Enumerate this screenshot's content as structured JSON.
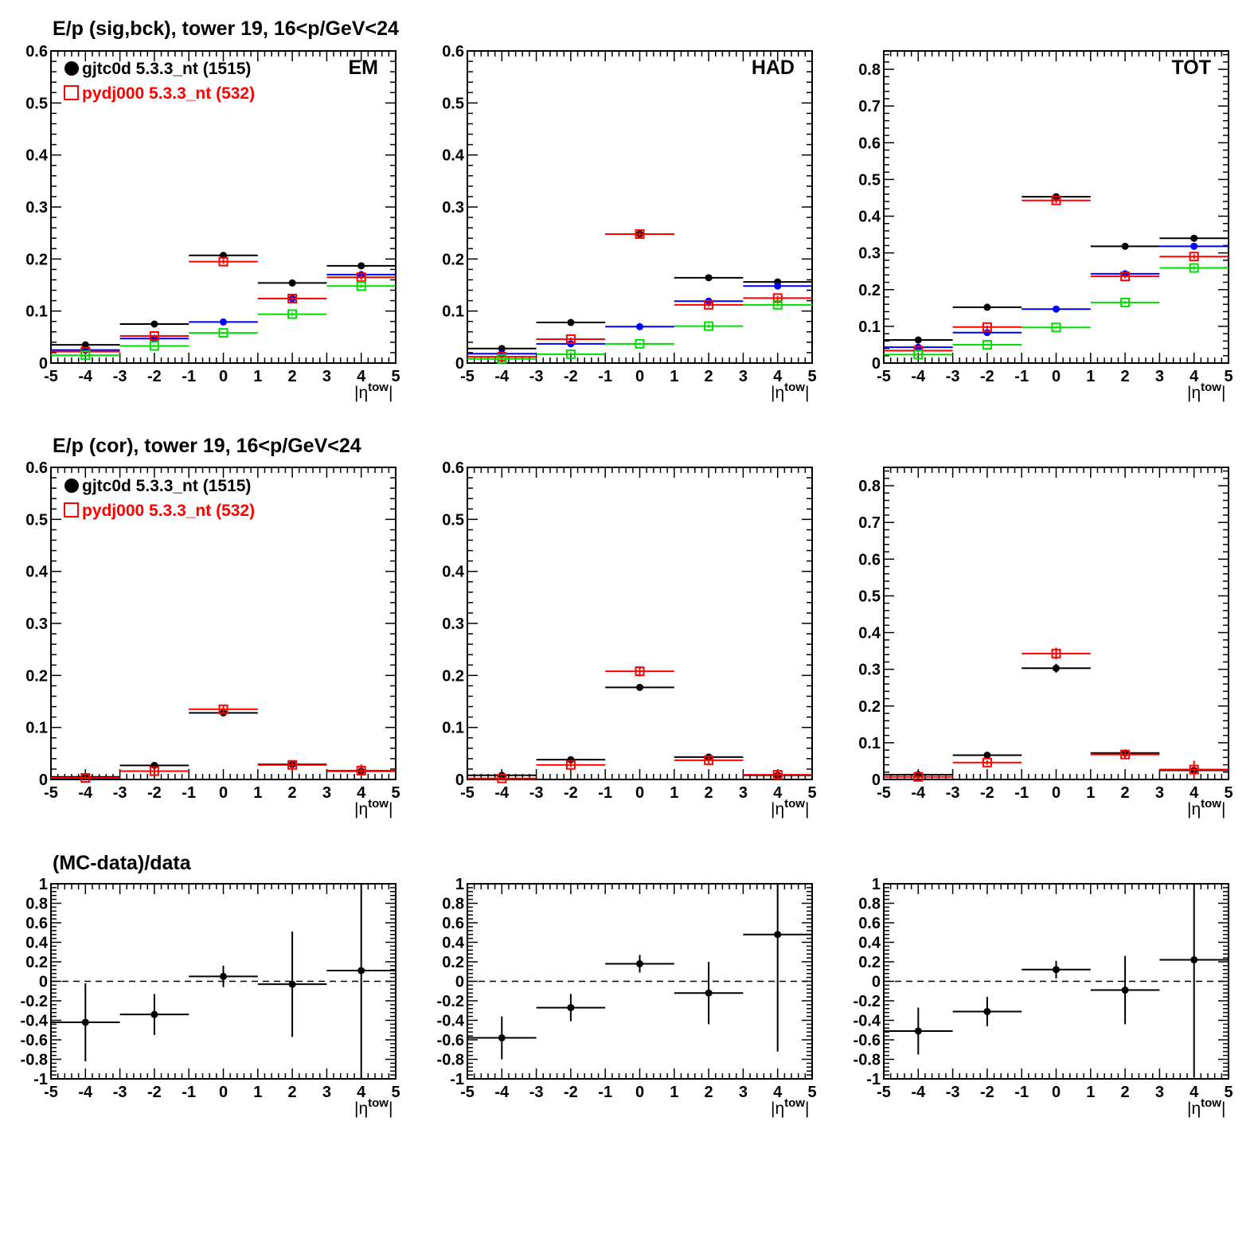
{
  "rows": [
    {
      "title": "E/p (sig,bck), tower 19, 16<p/GeV<24"
    },
    {
      "title": "E/p (cor), tower 19, 16<p/GeV<24"
    },
    {
      "title": "(MC-data)/data"
    }
  ],
  "legend": {
    "entries": [
      {
        "label": "gjtc0d 5.3.3_nt (1515)",
        "color": "#000000",
        "marker": "filled-circle"
      },
      {
        "label": "pydj000 5.3.3_nt (532)",
        "color": "#ff0000",
        "marker": "open-square"
      }
    ]
  },
  "axis_title": {
    "base": "|η",
    "sup": "tow",
    "close": "|"
  },
  "colors": {
    "data": "#000000",
    "mc": "#ff0000",
    "blue": "#0000ff",
    "green": "#00dd00"
  },
  "chart_data": [
    {
      "type": "scatter",
      "panel": "row1-EM",
      "label": "EM",
      "xlim": [
        -5,
        5
      ],
      "ylim": [
        0,
        0.6
      ],
      "yticks": [
        0,
        0.1,
        0.2,
        0.3,
        0.4,
        0.5,
        0.6
      ],
      "ytick_labels": [
        "0",
        "0.1",
        "0.2",
        "0.3",
        "0.4",
        "0.5",
        "0.6"
      ],
      "xticks": [
        -5,
        -4,
        -3,
        -2,
        -1,
        0,
        1,
        2,
        3,
        4,
        5
      ],
      "xlabel": "|η^tow|",
      "legend": "top-left",
      "series": [
        {
          "name": "black",
          "color": "#000000",
          "marker": "dot",
          "x": [
            -4,
            -2,
            0,
            2,
            4
          ],
          "xerr": 1,
          "y": [
            0.035,
            0.075,
            0.207,
            0.154,
            0.187
          ],
          "yerr": [
            0.002,
            0.002,
            0.003,
            0.003,
            0.003
          ]
        },
        {
          "name": "blue",
          "color": "#0000ff",
          "marker": "dot",
          "x": [
            -4,
            -2,
            0,
            2,
            4
          ],
          "xerr": 1,
          "y": [
            0.025,
            0.047,
            0.079,
            0.124,
            0.17
          ],
          "yerr": [
            0,
            0,
            0,
            0,
            0
          ]
        },
        {
          "name": "red",
          "color": "#ff0000",
          "marker": "square",
          "x": [
            -4,
            -2,
            0,
            2,
            4
          ],
          "xerr": 1,
          "y": [
            0.022,
            0.052,
            0.195,
            0.124,
            0.165
          ],
          "yerr": [
            0.003,
            0.003,
            0.004,
            0.004,
            0.005
          ]
        },
        {
          "name": "green",
          "color": "#00dd00",
          "marker": "square",
          "x": [
            -4,
            -2,
            0,
            2,
            4
          ],
          "xerr": 1,
          "y": [
            0.015,
            0.033,
            0.058,
            0.094,
            0.148
          ],
          "yerr": [
            0.002,
            0.002,
            0.002,
            0.003,
            0.003
          ]
        }
      ]
    },
    {
      "type": "scatter",
      "panel": "row1-HAD",
      "label": "HAD",
      "xlim": [
        -5,
        5
      ],
      "ylim": [
        0,
        0.6
      ],
      "yticks": [
        0,
        0.1,
        0.2,
        0.3,
        0.4,
        0.5,
        0.6
      ],
      "ytick_labels": [
        "0",
        "0.1",
        "0.2",
        "0.3",
        "0.4",
        "0.5",
        "0.6"
      ],
      "xticks": [
        -5,
        -4,
        -3,
        -2,
        -1,
        0,
        1,
        2,
        3,
        4,
        5
      ],
      "xlabel": "|η^tow|",
      "series": [
        {
          "name": "black",
          "color": "#000000",
          "marker": "dot",
          "x": [
            -4,
            -2,
            0,
            2,
            4
          ],
          "xerr": 1,
          "y": [
            0.028,
            0.078,
            0.248,
            0.164,
            0.156
          ],
          "yerr": [
            0.002,
            0.002,
            0.004,
            0.003,
            0.003
          ]
        },
        {
          "name": "blue",
          "color": "#0000ff",
          "marker": "dot",
          "x": [
            -4,
            -2,
            0,
            2,
            4
          ],
          "xerr": 1,
          "y": [
            0.018,
            0.037,
            0.07,
            0.119,
            0.148
          ],
          "yerr": [
            0,
            0,
            0,
            0,
            0
          ]
        },
        {
          "name": "red",
          "color": "#ff0000",
          "marker": "square",
          "x": [
            -4,
            -2,
            0,
            2,
            4
          ],
          "xerr": 1,
          "y": [
            0.012,
            0.046,
            0.248,
            0.112,
            0.125
          ],
          "yerr": [
            0.003,
            0.003,
            0.005,
            0.004,
            0.004
          ]
        },
        {
          "name": "green",
          "color": "#00dd00",
          "marker": "square",
          "x": [
            -4,
            -2,
            0,
            2,
            4
          ],
          "xerr": 1,
          "y": [
            0.008,
            0.017,
            0.037,
            0.071,
            0.112
          ],
          "yerr": [
            0.002,
            0.002,
            0.002,
            0.003,
            0.003
          ]
        }
      ]
    },
    {
      "type": "scatter",
      "panel": "row1-TOT",
      "label": "TOT",
      "xlim": [
        -5,
        5
      ],
      "ylim": [
        0,
        0.85
      ],
      "yticks": [
        0,
        0.1,
        0.2,
        0.3,
        0.4,
        0.5,
        0.6,
        0.7,
        0.8
      ],
      "ytick_labels": [
        "0",
        "0.1",
        "0.2",
        "0.3",
        "0.4",
        "0.5",
        "0.6",
        "0.7",
        "0.8"
      ],
      "xticks": [
        -5,
        -4,
        -3,
        -2,
        -1,
        0,
        1,
        2,
        3,
        4,
        5
      ],
      "xlabel": "|η^tow|",
      "series": [
        {
          "name": "black",
          "color": "#000000",
          "marker": "dot",
          "x": [
            -4,
            -2,
            0,
            2,
            4
          ],
          "xerr": 1,
          "y": [
            0.063,
            0.152,
            0.453,
            0.318,
            0.34
          ],
          "yerr": [
            0.003,
            0.003,
            0.006,
            0.004,
            0.005
          ]
        },
        {
          "name": "blue",
          "color": "#0000ff",
          "marker": "dot",
          "x": [
            -4,
            -2,
            0,
            2,
            4
          ],
          "xerr": 1,
          "y": [
            0.043,
            0.083,
            0.147,
            0.243,
            0.318
          ],
          "yerr": [
            0,
            0,
            0,
            0,
            0
          ]
        },
        {
          "name": "red",
          "color": "#ff0000",
          "marker": "square",
          "x": [
            -4,
            -2,
            0,
            2,
            4
          ],
          "xerr": 1,
          "y": [
            0.034,
            0.098,
            0.443,
            0.236,
            0.29
          ],
          "yerr": [
            0.004,
            0.004,
            0.007,
            0.005,
            0.006
          ]
        },
        {
          "name": "green",
          "color": "#00dd00",
          "marker": "square",
          "x": [
            -4,
            -2,
            0,
            2,
            4
          ],
          "xerr": 1,
          "y": [
            0.023,
            0.05,
            0.097,
            0.165,
            0.259
          ],
          "yerr": [
            0.002,
            0.003,
            0.003,
            0.004,
            0.005
          ]
        }
      ]
    },
    {
      "type": "scatter",
      "panel": "row2-EM",
      "xlim": [
        -5,
        5
      ],
      "ylim": [
        0,
        0.6
      ],
      "yticks": [
        0,
        0.1,
        0.2,
        0.3,
        0.4,
        0.5,
        0.6
      ],
      "ytick_labels": [
        "0",
        "0.1",
        "0.2",
        "0.3",
        "0.4",
        "0.5",
        "0.6"
      ],
      "xticks": [
        -5,
        -4,
        -3,
        -2,
        -1,
        0,
        1,
        2,
        3,
        4,
        5
      ],
      "xlabel": "|η^tow|",
      "legend": "top-left",
      "series": [
        {
          "name": "black",
          "color": "#000000",
          "marker": "dot",
          "x": [
            -4,
            -2,
            0,
            2,
            4
          ],
          "xerr": 1,
          "y": [
            0.005,
            0.027,
            0.128,
            0.029,
            0.016
          ],
          "yerr": [
            0.003,
            0.003,
            0.004,
            0.004,
            0.006
          ]
        },
        {
          "name": "red",
          "color": "#ff0000",
          "marker": "square",
          "x": [
            -4,
            -2,
            0,
            2,
            4
          ],
          "xerr": 1,
          "y": [
            0.003,
            0.016,
            0.135,
            0.028,
            0.017
          ],
          "yerr": [
            0.004,
            0.004,
            0.006,
            0.008,
            0.012
          ]
        }
      ]
    },
    {
      "type": "scatter",
      "panel": "row2-HAD",
      "xlim": [
        -5,
        5
      ],
      "ylim": [
        0,
        0.6
      ],
      "yticks": [
        0,
        0.1,
        0.2,
        0.3,
        0.4,
        0.5,
        0.6
      ],
      "ytick_labels": [
        "0",
        "0.1",
        "0.2",
        "0.3",
        "0.4",
        "0.5",
        "0.6"
      ],
      "xticks": [
        -5,
        -4,
        -3,
        -2,
        -1,
        0,
        1,
        2,
        3,
        4,
        5
      ],
      "xlabel": "|η^tow|",
      "series": [
        {
          "name": "black",
          "color": "#000000",
          "marker": "dot",
          "x": [
            -4,
            -2,
            0,
            2,
            4
          ],
          "xerr": 1,
          "y": [
            0.008,
            0.038,
            0.177,
            0.043,
            0.008
          ],
          "yerr": [
            0.003,
            0.003,
            0.006,
            0.004,
            0.004
          ]
        },
        {
          "name": "red",
          "color": "#ff0000",
          "marker": "square",
          "x": [
            -4,
            -2,
            0,
            2,
            4
          ],
          "xerr": 1,
          "y": [
            0.002,
            0.028,
            0.208,
            0.037,
            0.009
          ],
          "yerr": [
            0.004,
            0.004,
            0.01,
            0.006,
            0.01
          ]
        }
      ]
    },
    {
      "type": "scatter",
      "panel": "row2-TOT",
      "xlim": [
        -5,
        5
      ],
      "ylim": [
        0,
        0.85
      ],
      "yticks": [
        0,
        0.1,
        0.2,
        0.3,
        0.4,
        0.5,
        0.6,
        0.7,
        0.8
      ],
      "ytick_labels": [
        "0",
        "0.1",
        "0.2",
        "0.3",
        "0.4",
        "0.5",
        "0.6",
        "0.7",
        "0.8"
      ],
      "xticks": [
        -5,
        -4,
        -3,
        -2,
        -1,
        0,
        1,
        2,
        3,
        4,
        5
      ],
      "xlabel": "|η^tow|",
      "series": [
        {
          "name": "black",
          "color": "#000000",
          "marker": "dot",
          "x": [
            -4,
            -2,
            0,
            2,
            4
          ],
          "xerr": 1,
          "y": [
            0.013,
            0.066,
            0.303,
            0.072,
            0.025
          ],
          "yerr": [
            0.004,
            0.004,
            0.012,
            0.007,
            0.008
          ]
        },
        {
          "name": "red",
          "color": "#ff0000",
          "marker": "square",
          "x": [
            -4,
            -2,
            0,
            2,
            4
          ],
          "xerr": 1,
          "y": [
            0.007,
            0.046,
            0.343,
            0.068,
            0.027
          ],
          "yerr": [
            0.005,
            0.006,
            0.016,
            0.012,
            0.024
          ]
        }
      ]
    },
    {
      "type": "scatter",
      "panel": "row3-EM",
      "xlim": [
        -5,
        5
      ],
      "ylim": [
        -1,
        1
      ],
      "yticks": [
        -1,
        -0.8,
        -0.6,
        -0.4,
        -0.2,
        0,
        0.2,
        0.4,
        0.6,
        0.8,
        1
      ],
      "ytick_labels": [
        "-1",
        "-0.8",
        "-0.6",
        "-0.4",
        "-0.2",
        "0",
        "0.2",
        "0.4",
        "0.6",
        "0.8",
        "1"
      ],
      "xticks": [
        -5,
        -4,
        -3,
        -2,
        -1,
        0,
        1,
        2,
        3,
        4,
        5
      ],
      "xlabel": "|η^tow|",
      "reference_line": 0,
      "series": [
        {
          "name": "ratio",
          "color": "#000000",
          "marker": "dot",
          "x": [
            -4,
            -2,
            0,
            2,
            4
          ],
          "xerr": 1,
          "y": [
            -0.42,
            -0.34,
            0.05,
            -0.03,
            0.11
          ],
          "yerr": [
            0.4,
            0.21,
            0.11,
            0.54,
            1.2
          ]
        }
      ]
    },
    {
      "type": "scatter",
      "panel": "row3-HAD",
      "xlim": [
        -5,
        5
      ],
      "ylim": [
        -1,
        1
      ],
      "yticks": [
        -1,
        -0.8,
        -0.6,
        -0.4,
        -0.2,
        0,
        0.2,
        0.4,
        0.6,
        0.8,
        1
      ],
      "ytick_labels": [
        "-1",
        "-0.8",
        "-0.6",
        "-0.4",
        "-0.2",
        "0",
        "0.2",
        "0.4",
        "0.6",
        "0.8",
        "1"
      ],
      "xticks": [
        -5,
        -4,
        -3,
        -2,
        -1,
        0,
        1,
        2,
        3,
        4,
        5
      ],
      "xlabel": "|η^tow|",
      "reference_line": 0,
      "series": [
        {
          "name": "ratio",
          "color": "#000000",
          "marker": "dot",
          "x": [
            -4,
            -2,
            0,
            2,
            4
          ],
          "xerr": 1,
          "y": [
            -0.58,
            -0.27,
            0.18,
            -0.12,
            0.48
          ],
          "yerr": [
            0.22,
            0.14,
            0.09,
            0.32,
            1.2
          ]
        }
      ]
    },
    {
      "type": "scatter",
      "panel": "row3-TOT",
      "xlim": [
        -5,
        5
      ],
      "ylim": [
        -1,
        1
      ],
      "yticks": [
        -1,
        -0.8,
        -0.6,
        -0.4,
        -0.2,
        0,
        0.2,
        0.4,
        0.6,
        0.8,
        1
      ],
      "ytick_labels": [
        "-1",
        "-0.8",
        "-0.6",
        "-0.4",
        "-0.2",
        "0",
        "0.2",
        "0.4",
        "0.6",
        "0.8",
        "1"
      ],
      "xticks": [
        -5,
        -4,
        -3,
        -2,
        -1,
        0,
        1,
        2,
        3,
        4,
        5
      ],
      "xlabel": "|η^tow|",
      "reference_line": 0,
      "series": [
        {
          "name": "ratio",
          "color": "#000000",
          "marker": "dot",
          "x": [
            -4,
            -2,
            0,
            2,
            4
          ],
          "xerr": 1,
          "y": [
            -0.51,
            -0.31,
            0.12,
            -0.09,
            0.22
          ],
          "yerr": [
            0.24,
            0.15,
            0.09,
            0.35,
            1.2
          ]
        }
      ]
    }
  ]
}
